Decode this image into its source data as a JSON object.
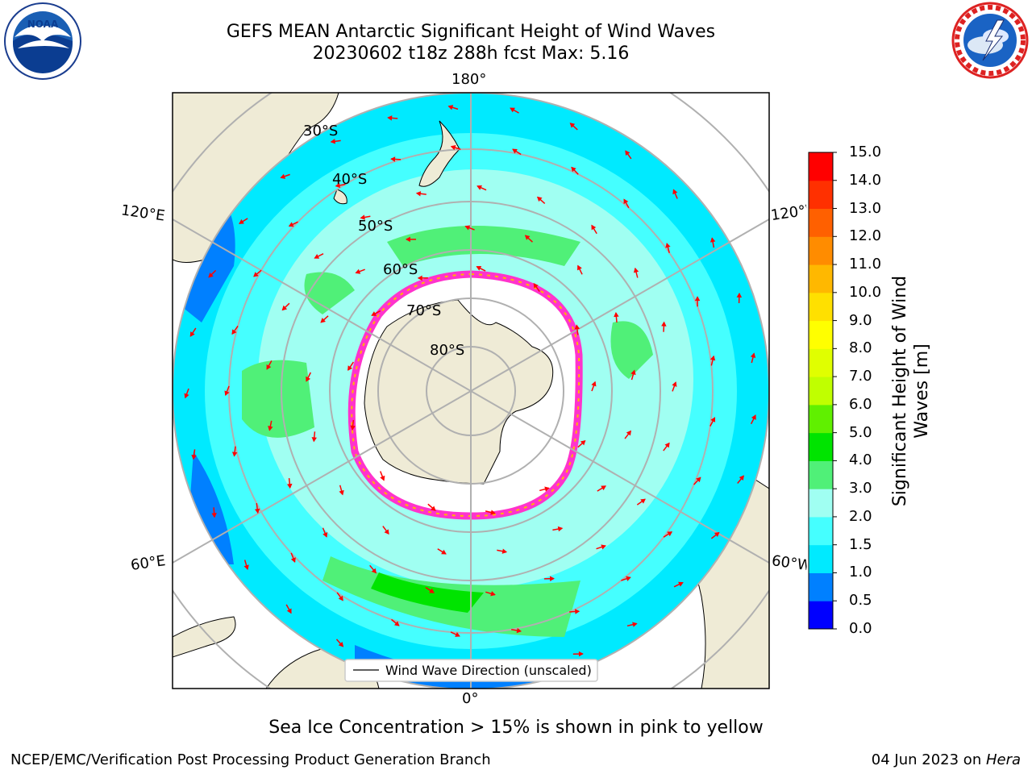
{
  "title": {
    "line1": "GEFS MEAN Antarctic Significant Height of Wind Waves",
    "line2": "20230602 t18z 288h fcst   Max: 5.16"
  },
  "map": {
    "projection": "south-polar-stereographic",
    "longitude_labels": {
      "top": "180°",
      "bottom": "0°",
      "upper_left": "120°E",
      "upper_right": "120°W",
      "lower_left": "60°E",
      "lower_right": "60°W"
    },
    "latitude_labels": [
      "30°S",
      "40°S",
      "50°S",
      "60°S",
      "70°S",
      "80°S"
    ],
    "legend": {
      "entry": "Wind Wave Direction (unscaled)"
    },
    "colors": {
      "land": "#efebd6",
      "arrows": "#ff0000",
      "sea_ice": "#ff33cc",
      "gridlines": "#b0b0b0"
    }
  },
  "colorbar": {
    "label": "Significant Height of Wind Waves [m]",
    "ticks": [
      "0.0",
      "0.5",
      "1.0",
      "1.5",
      "2.0",
      "3.0",
      "4.0",
      "5.0",
      "6.0",
      "7.0",
      "8.0",
      "9.0",
      "10.0",
      "11.0",
      "12.0",
      "13.0",
      "14.0",
      "15.0"
    ],
    "colors": [
      "#0000ff",
      "#0080ff",
      "#00eaff",
      "#45ffff",
      "#a0fff2",
      "#50f078",
      "#00e400",
      "#60f000",
      "#c0ff00",
      "#e0ff00",
      "#ffff00",
      "#ffe000",
      "#ffb800",
      "#ff8c00",
      "#ff6000",
      "#ff3000",
      "#ff0000"
    ]
  },
  "footer_note": "Sea Ice Concentration > 15% is shown in pink to yellow",
  "credit": "NCEP/EMC/Verification Post Processing Product Generation Branch",
  "date_prefix": "04 Jun 2023 on ",
  "date_machine": "Hera",
  "logos": {
    "left": "noaa-logo",
    "right": "national-weather-service-logo"
  }
}
